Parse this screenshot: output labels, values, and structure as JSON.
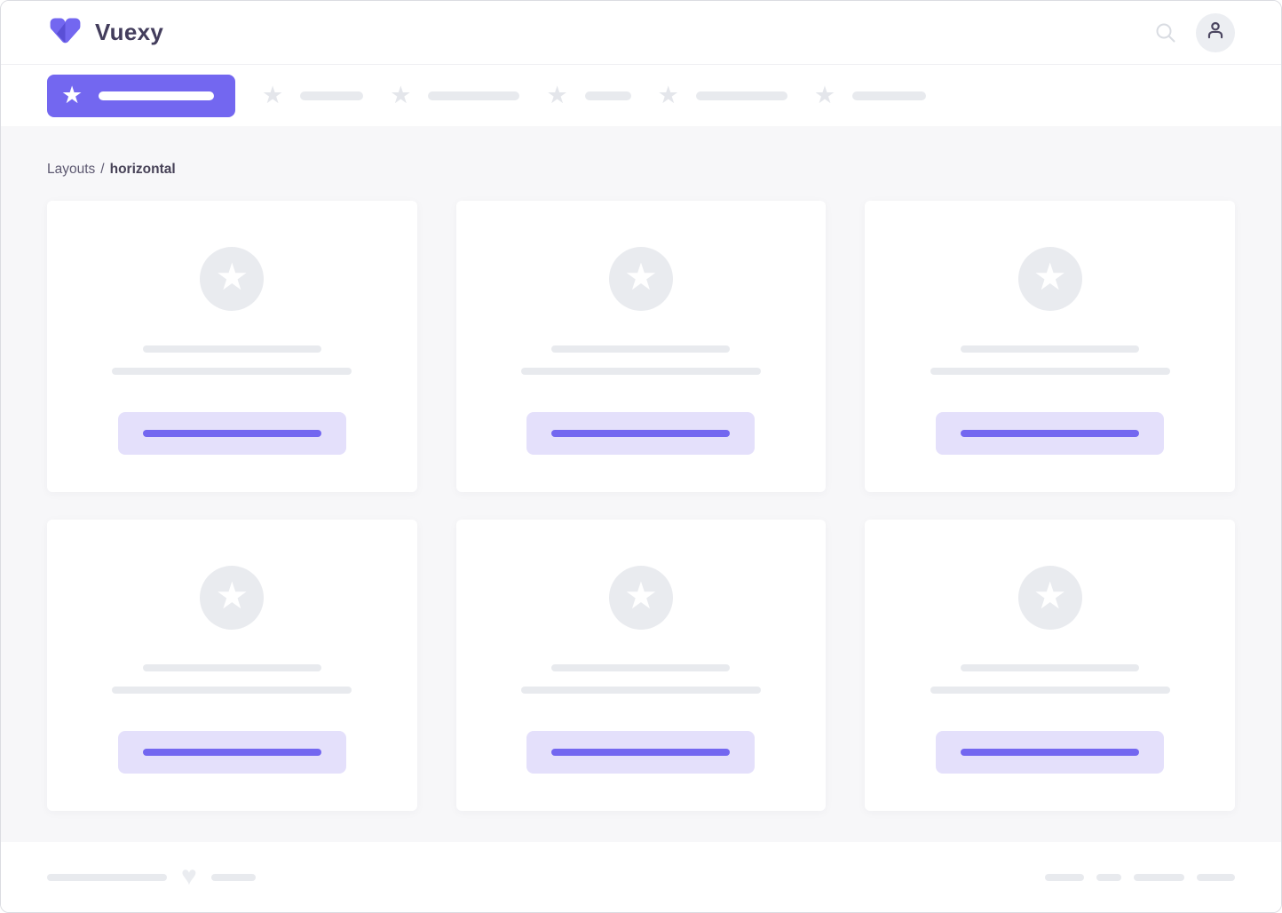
{
  "brand": {
    "name": "Vuexy"
  },
  "navbar": {
    "icons": {
      "search": "magnifier",
      "user": "person-outline"
    }
  },
  "glyphs": {
    "star": "★",
    "heart": "♥"
  },
  "menu": {
    "active_item": {
      "icon": "star",
      "label_placeholder_width": 130
    },
    "items": [
      {
        "icon": "star",
        "label_placeholder_width": 71
      },
      {
        "icon": "star",
        "label_placeholder_width": 103
      },
      {
        "icon": "star",
        "label_placeholder_width": 52
      },
      {
        "icon": "star",
        "label_placeholder_width": 103
      },
      {
        "icon": "star",
        "label_placeholder_width": 83
      }
    ]
  },
  "breadcrumb": {
    "section": "Layouts",
    "separator": "/",
    "current": "horizontal"
  },
  "content": {
    "cards": {
      "count": 6,
      "icon": "star",
      "title_placeholder_width": 201,
      "text_placeholder_width": 270,
      "button_label_placeholder_width": 201
    }
  },
  "footer": {
    "left_bars": [
      135,
      50
    ],
    "heart_icon": "heart",
    "right_bars": [
      44,
      28,
      57,
      43
    ]
  },
  "colors": {
    "primary": "#7367f0",
    "primary_dark": "#5a4fd6",
    "primary_light": "#e4e0fb",
    "skeleton_gray": "#e8eaee",
    "content_background": "#f7f7f9",
    "brand_text": "#433d5c"
  }
}
